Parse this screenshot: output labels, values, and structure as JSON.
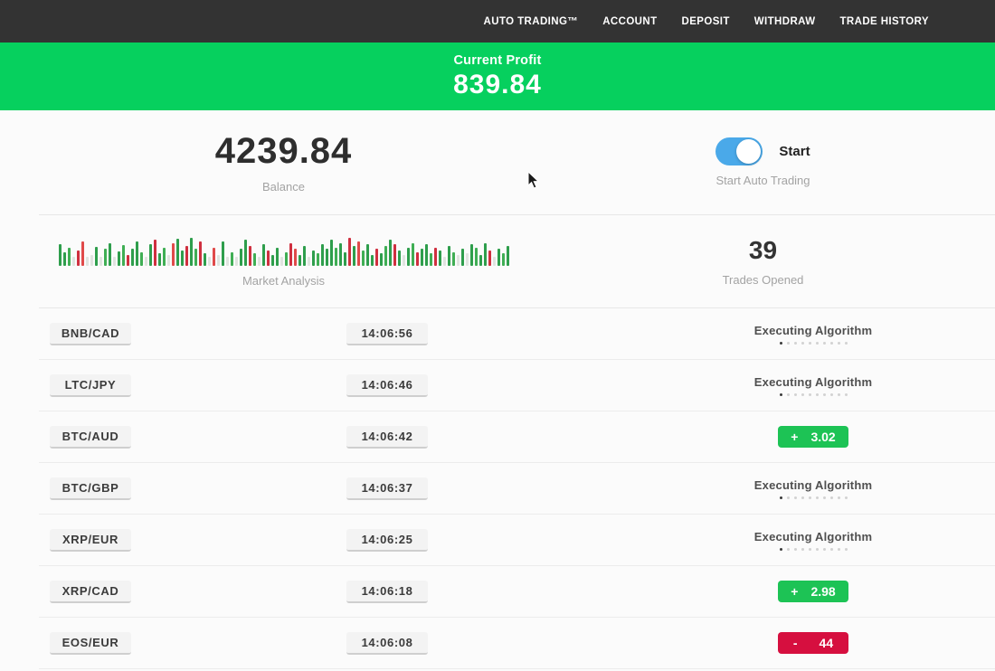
{
  "navbar": {
    "items": [
      "AUTO TRADING™",
      "ACCOUNT",
      "DEPOSIT",
      "WITHDRAW",
      "TRADE HISTORY"
    ]
  },
  "profit_banner": {
    "label": "Current Profit",
    "value": "839.84"
  },
  "stats": {
    "balance_value": "4239.84",
    "balance_label": "Balance",
    "toggle_label": "Start",
    "toggle_sublabel": "Start Auto Trading",
    "toggle_on": true,
    "market_analysis_label": "Market Analysis",
    "trades_opened_value": "39",
    "trades_opened_label": "Trades Opened"
  },
  "colors": {
    "banner-green": "#06d05e",
    "toggle-blue": "#4aa9e9",
    "badge-green": "#1dc355",
    "badge-red": "#d60f3f"
  },
  "chart_data": {
    "type": "bar",
    "title": "Market Analysis",
    "note": "mini candlestick-style volume bars, green=up red=down pale=neutral, heights in % of 34px",
    "colors": {
      "g": "#2e9e4c",
      "G": "#3fae54",
      "r": "#cf2f3f",
      "R": "#e04a4a",
      "p": "#e0e4e0"
    },
    "bars": [
      [
        72,
        "g"
      ],
      [
        45,
        "g"
      ],
      [
        58,
        "G"
      ],
      [
        30,
        "p"
      ],
      [
        50,
        "r"
      ],
      [
        78,
        "R"
      ],
      [
        28,
        "p"
      ],
      [
        35,
        "p"
      ],
      [
        62,
        "g"
      ],
      [
        30,
        "p"
      ],
      [
        55,
        "G"
      ],
      [
        75,
        "g"
      ],
      [
        30,
        "p"
      ],
      [
        48,
        "g"
      ],
      [
        68,
        "G"
      ],
      [
        35,
        "r"
      ],
      [
        55,
        "g"
      ],
      [
        80,
        "g"
      ],
      [
        45,
        "G"
      ],
      [
        30,
        "p"
      ],
      [
        70,
        "g"
      ],
      [
        85,
        "r"
      ],
      [
        40,
        "g"
      ],
      [
        60,
        "G"
      ],
      [
        35,
        "p"
      ],
      [
        75,
        "R"
      ],
      [
        88,
        "g"
      ],
      [
        50,
        "g"
      ],
      [
        65,
        "r"
      ],
      [
        92,
        "g"
      ],
      [
        55,
        "G"
      ],
      [
        78,
        "r"
      ],
      [
        40,
        "g"
      ],
      [
        30,
        "p"
      ],
      [
        60,
        "R"
      ],
      [
        35,
        "p"
      ],
      [
        80,
        "g"
      ],
      [
        28,
        "p"
      ],
      [
        45,
        "G"
      ],
      [
        30,
        "p"
      ],
      [
        55,
        "g"
      ],
      [
        85,
        "g"
      ],
      [
        65,
        "r"
      ],
      [
        40,
        "G"
      ],
      [
        30,
        "p"
      ],
      [
        70,
        "g"
      ],
      [
        50,
        "r"
      ],
      [
        35,
        "g"
      ],
      [
        60,
        "g"
      ],
      [
        30,
        "p"
      ],
      [
        45,
        "G"
      ],
      [
        75,
        "r"
      ],
      [
        55,
        "R"
      ],
      [
        35,
        "g"
      ],
      [
        65,
        "g"
      ],
      [
        30,
        "p"
      ],
      [
        50,
        "g"
      ],
      [
        40,
        "G"
      ],
      [
        70,
        "g"
      ],
      [
        55,
        "g"
      ],
      [
        85,
        "g"
      ],
      [
        60,
        "G"
      ],
      [
        75,
        "g"
      ],
      [
        45,
        "g"
      ],
      [
        90,
        "r"
      ],
      [
        65,
        "g"
      ],
      [
        80,
        "R"
      ],
      [
        50,
        "G"
      ],
      [
        70,
        "g"
      ],
      [
        35,
        "g"
      ],
      [
        55,
        "r"
      ],
      [
        40,
        "g"
      ],
      [
        65,
        "G"
      ],
      [
        85,
        "g"
      ],
      [
        70,
        "r"
      ],
      [
        50,
        "g"
      ],
      [
        35,
        "p"
      ],
      [
        60,
        "g"
      ],
      [
        75,
        "G"
      ],
      [
        45,
        "r"
      ],
      [
        55,
        "g"
      ],
      [
        70,
        "g"
      ],
      [
        40,
        "G"
      ],
      [
        60,
        "r"
      ],
      [
        50,
        "g"
      ],
      [
        30,
        "p"
      ],
      [
        65,
        "g"
      ],
      [
        45,
        "G"
      ],
      [
        35,
        "p"
      ],
      [
        55,
        "g"
      ],
      [
        40,
        "p"
      ],
      [
        70,
        "g"
      ],
      [
        60,
        "G"
      ],
      [
        35,
        "g"
      ],
      [
        75,
        "g"
      ],
      [
        50,
        "r"
      ],
      [
        30,
        "p"
      ],
      [
        55,
        "g"
      ],
      [
        40,
        "G"
      ],
      [
        65,
        "g"
      ]
    ]
  },
  "progress_dots": {
    "count": 10,
    "active_index": 0
  },
  "status_labels": {
    "executing": "Executing Algorithm"
  },
  "trades": [
    {
      "pair": "BNB/CAD",
      "time": "14:06:56",
      "status": "executing"
    },
    {
      "pair": "LTC/JPY",
      "time": "14:06:46",
      "status": "executing"
    },
    {
      "pair": "BTC/AUD",
      "time": "14:06:42",
      "status": "profit",
      "sign": "+",
      "amount": "3.02"
    },
    {
      "pair": "BTC/GBP",
      "time": "14:06:37",
      "status": "executing"
    },
    {
      "pair": "XRP/EUR",
      "time": "14:06:25",
      "status": "executing"
    },
    {
      "pair": "XRP/CAD",
      "time": "14:06:18",
      "status": "profit",
      "sign": "+",
      "amount": "2.98"
    },
    {
      "pair": "EOS/EUR",
      "time": "14:06:08",
      "status": "loss",
      "sign": "-",
      "amount": "44"
    }
  ]
}
